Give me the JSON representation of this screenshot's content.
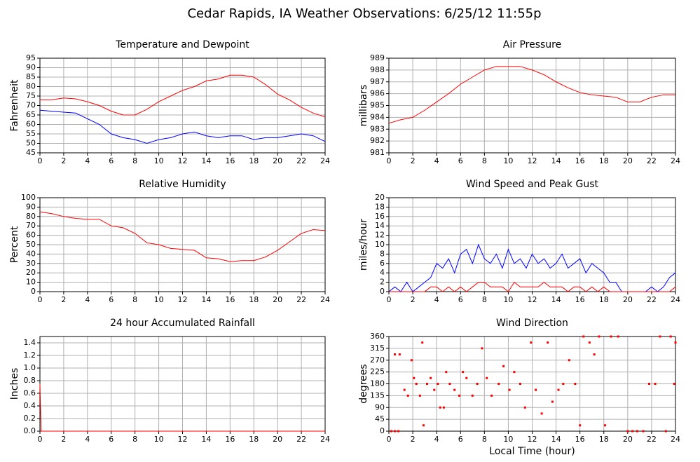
{
  "title": "Cedar Rapids, IA Weather Observations: 6/25/12 11:55p",
  "chart_data": [
    {
      "type": "line",
      "title": "Temperature and Dewpoint",
      "ylabel": "Fahrenheit",
      "grid": true,
      "x": [
        0,
        1,
        2,
        3,
        4,
        5,
        6,
        7,
        8,
        9,
        10,
        11,
        12,
        13,
        14,
        15,
        16,
        17,
        18,
        19,
        20,
        21,
        22,
        23,
        24
      ],
      "series": [
        {
          "color": "#ff0000",
          "values": [
            73,
            73,
            74,
            73.5,
            72,
            70,
            67,
            65,
            65,
            68,
            72,
            75,
            78,
            80,
            83,
            84,
            86,
            86,
            85,
            81,
            76,
            73,
            69,
            66,
            64
          ]
        },
        {
          "color": "#0000ff",
          "values": [
            67.5,
            67,
            66.5,
            66,
            63,
            60,
            55,
            53,
            52,
            50,
            52,
            53,
            55,
            56,
            54,
            53,
            54,
            54,
            52,
            53,
            53,
            54,
            55,
            54,
            51
          ]
        }
      ],
      "xlim": [
        0,
        24
      ],
      "xticks": [
        0,
        2,
        4,
        6,
        8,
        10,
        12,
        14,
        16,
        18,
        20,
        22,
        24
      ],
      "ylim": [
        45,
        95
      ],
      "yticks": [
        45,
        50,
        55,
        60,
        65,
        70,
        75,
        80,
        85,
        90,
        95
      ]
    },
    {
      "type": "line",
      "title": "Air Pressure",
      "ylabel": "millibars",
      "grid": true,
      "x": [
        0,
        1,
        2,
        3,
        4,
        5,
        6,
        7,
        8,
        9,
        10,
        11,
        12,
        13,
        14,
        15,
        16,
        17,
        18,
        19,
        20,
        21,
        22,
        23,
        24
      ],
      "series": [
        {
          "color": "#ff0000",
          "values": [
            983.5,
            983.8,
            984,
            984.6,
            985.3,
            986,
            986.8,
            987.4,
            988,
            988.3,
            988.3,
            988.3,
            988,
            987.6,
            987,
            986.5,
            986.1,
            985.9,
            985.8,
            985.7,
            985.3,
            985.3,
            985.7,
            985.9,
            985.9
          ]
        }
      ],
      "xlim": [
        0,
        24
      ],
      "xticks": [
        0,
        2,
        4,
        6,
        8,
        10,
        12,
        14,
        16,
        18,
        20,
        22,
        24
      ],
      "ylim": [
        981,
        989
      ],
      "yticks": [
        981,
        982,
        983,
        984,
        985,
        986,
        987,
        988,
        989
      ]
    },
    {
      "type": "line",
      "title": "Relative Humidity",
      "ylabel": "Percent",
      "grid": true,
      "x": [
        0,
        1,
        2,
        3,
        4,
        5,
        6,
        7,
        8,
        9,
        10,
        11,
        12,
        13,
        14,
        15,
        16,
        17,
        18,
        19,
        20,
        21,
        22,
        23,
        24
      ],
      "series": [
        {
          "color": "#ff0000",
          "values": [
            85,
            83,
            80,
            78,
            77,
            77,
            70,
            68,
            62,
            52,
            50,
            46,
            45,
            44,
            36,
            35,
            32,
            33,
            33,
            37,
            44,
            53,
            62,
            66,
            65
          ]
        }
      ],
      "xlim": [
        0,
        24
      ],
      "xticks": [
        0,
        2,
        4,
        6,
        8,
        10,
        12,
        14,
        16,
        18,
        20,
        22,
        24
      ],
      "ylim": [
        0,
        100
      ],
      "yticks": [
        0,
        10,
        20,
        30,
        40,
        50,
        60,
        70,
        80,
        90,
        100
      ]
    },
    {
      "type": "line",
      "title": "Wind Speed and Peak Gust",
      "ylabel": "miles/hour",
      "grid": true,
      "x": [
        0,
        0.5,
        1,
        1.5,
        2,
        2.5,
        3,
        3.5,
        4,
        4.5,
        5,
        5.5,
        6,
        6.5,
        7,
        7.5,
        8,
        8.5,
        9,
        9.5,
        10,
        10.5,
        11,
        11.5,
        12,
        12.5,
        13,
        13.5,
        14,
        14.5,
        15,
        15.5,
        16,
        16.5,
        17,
        17.5,
        18,
        18.5,
        19,
        19.5,
        20,
        20.5,
        21,
        21.5,
        22,
        22.5,
        23,
        23.5,
        24
      ],
      "series": [
        {
          "color": "#0000ff",
          "values": [
            0,
            1,
            0,
            2,
            0,
            1,
            2,
            3,
            6,
            5,
            7,
            4,
            8,
            9,
            6,
            10,
            7,
            6,
            8,
            5,
            9,
            6,
            7,
            5,
            8,
            6,
            7,
            5,
            6,
            8,
            5,
            6,
            7,
            4,
            6,
            5,
            4,
            2,
            2,
            0,
            0,
            0,
            0,
            0,
            1,
            0,
            1,
            3,
            4
          ]
        },
        {
          "color": "#ff0000",
          "values": [
            0,
            0,
            0,
            0,
            0,
            0,
            0,
            1,
            1,
            0,
            1,
            0,
            1,
            0,
            1,
            2,
            2,
            1,
            1,
            1,
            0,
            2,
            1,
            1,
            1,
            1,
            2,
            1,
            1,
            1,
            0,
            1,
            1,
            0,
            1,
            0,
            1,
            0,
            0,
            0,
            0,
            0,
            0,
            0,
            0,
            0,
            0,
            0,
            1
          ]
        }
      ],
      "xlim": [
        0,
        24
      ],
      "xticks": [
        0,
        2,
        4,
        6,
        8,
        10,
        12,
        14,
        16,
        18,
        20,
        22,
        24
      ],
      "ylim": [
        0,
        20
      ],
      "yticks": [
        0,
        2,
        4,
        6,
        8,
        10,
        12,
        14,
        16,
        18,
        20
      ]
    },
    {
      "type": "line",
      "title": "24 hour Accumulated Rainfall",
      "ylabel": "Inches",
      "grid": true,
      "x": [
        0,
        0.1,
        24
      ],
      "series": [
        {
          "color": "#ff0000",
          "values": [
            0.75,
            0,
            0
          ]
        }
      ],
      "xlim": [
        0,
        24
      ],
      "xticks": [
        0,
        2,
        4,
        6,
        8,
        10,
        12,
        14,
        16,
        18,
        20,
        22,
        24
      ],
      "ylim": [
        0,
        1.5
      ],
      "yticks": [
        {
          "value": 0,
          "label": "0.0"
        },
        {
          "value": 0.2,
          "label": "0.2"
        },
        {
          "value": 0.4,
          "label": "0.4"
        },
        {
          "value": 0.6,
          "label": "0.6"
        },
        {
          "value": 0.8,
          "label": "0.8"
        },
        {
          "value": 1,
          "label": "1.0"
        },
        {
          "value": 1.2,
          "label": "1.2"
        },
        {
          "value": 1.4,
          "label": "1.4"
        }
      ]
    },
    {
      "type": "scatter",
      "title": "Wind Direction",
      "ylabel": "degrees",
      "xlabel": "Local Time (hour)",
      "grid": true,
      "x": [
        0.2,
        0.5,
        0.8,
        0.5,
        0.9,
        1.3,
        1.6,
        1.9,
        2.1,
        2.3,
        2.6,
        2.8,
        2.9,
        3.2,
        3.5,
        3.8,
        4.1,
        4.3,
        4.6,
        4.8,
        5.1,
        5.5,
        5.9,
        6.2,
        6.5,
        7.0,
        7.4,
        7.8,
        8.2,
        8.6,
        9.2,
        9.6,
        10.1,
        10.5,
        11.0,
        11.4,
        11.9,
        12.3,
        12.8,
        13.3,
        13.7,
        14.2,
        14.6,
        15.1,
        15.6,
        16.0,
        16.3,
        16.8,
        17.2,
        17.6,
        18.1,
        18.6,
        19.2,
        20.0,
        20.4,
        20.8,
        21.3,
        21.8,
        22.3,
        22.7,
        23.2,
        23.6,
        23.9,
        24
      ],
      "series": [
        {
          "color": "#ff0000",
          "values": [
            0,
            0,
            0,
            292,
            292,
            157,
            135,
            270,
            202,
            180,
            135,
            337,
            22,
            180,
            202,
            157,
            180,
            90,
            90,
            225,
            180,
            157,
            135,
            225,
            202,
            135,
            180,
            315,
            202,
            135,
            180,
            247,
            157,
            225,
            180,
            90,
            337,
            157,
            67,
            337,
            112,
            157,
            180,
            270,
            180,
            22,
            360,
            337,
            292,
            360,
            22,
            360,
            360,
            0,
            0,
            0,
            0,
            180,
            180,
            360,
            0,
            360,
            180,
            337
          ]
        }
      ],
      "xlim": [
        0,
        24
      ],
      "xticks": [
        0,
        2,
        4,
        6,
        8,
        10,
        12,
        14,
        16,
        18,
        20,
        22,
        24
      ],
      "ylim": [
        0,
        360
      ],
      "yticks": [
        0,
        45,
        90,
        135,
        180,
        225,
        270,
        315,
        360
      ]
    }
  ]
}
